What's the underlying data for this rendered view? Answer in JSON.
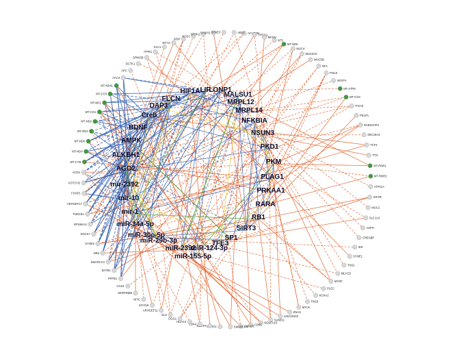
{
  "colors": {
    "orange": "#e2622a",
    "blue": "#2f5fb3",
    "yellow": "#e8d24a",
    "green": "#5aa64a",
    "node_grey": "#d8d8d8",
    "node_green": "#3f9a3a"
  },
  "hubs": [
    "HIF1A",
    "LIF",
    "LONP1",
    "MALSU1",
    "FLCN",
    "MRPL12",
    "DAP3",
    "MRPL14",
    "Creb",
    "NFKBIA",
    "BDNF",
    "NSUN3",
    "AMPK",
    "PKD1",
    "ALKBH1",
    "PKM",
    "AGO2",
    "PLAG1",
    "mir-2392",
    "PRKAA1",
    "mir-10",
    "RARA",
    "mir-1",
    "RB1",
    "miR-34a-5p",
    "SIRT3",
    "miR-30c-5p",
    "SP1",
    "TFE3",
    "miR-29b-3p",
    "miR-2392",
    "miR-124-3p",
    "miR-155-5p"
  ],
  "peripheral": [
    "ACVR2B",
    "TP53AL",
    "MFNN",
    "NT5",
    "MT-ND5",
    "MUC4",
    "MUC5AC",
    "MUC5B",
    "NF1",
    "POLE",
    "VEGFA",
    "MT-ATP8",
    "MT-CO2",
    "ITGA5",
    "PELP1",
    "RAB11FIP4",
    "SEC16A3",
    "TCF4",
    "TTN",
    "MT-RNR1",
    "MT-RNR2",
    "ATP11A",
    "IGF2R",
    "MUC2",
    "SLC1A2",
    "ASPH",
    "CRESBP",
    "IDS",
    "SYNE1",
    "TNS1",
    "MLYCD",
    "MYRF",
    "PLEC",
    "KCNA2",
    "TNS3",
    "MYLK",
    "ZNAH",
    "LINC00342",
    "SUMO2",
    "NDUFA10",
    "CDK5",
    "SMAD3",
    "SMARCA4",
    "SNHG1",
    "MECP2",
    "CDK4",
    "HDAC4",
    "OGG1",
    "GLS",
    "ARHGEF11",
    "MYO16",
    "NFIC",
    "SERPINB6",
    "CGS1",
    "FPP5C",
    "BATB1",
    "SMARCA4",
    "NR6",
    "SYNE2",
    "DOCK7",
    "RPS6KA2",
    "TNRC6A",
    "ARHGEF17",
    "FOXP1",
    "KOTCH2",
    "ACD1",
    "MT-CYB",
    "MT-ND4",
    "MT-ND6",
    "MT-ND3",
    "MT-ND2",
    "MT-CO1",
    "MT-ND1",
    "MT-CO3",
    "MT-ND4L",
    "AAC3",
    "APC",
    "DCTK1",
    "GRIN2B",
    "ITPR1",
    "KLC1",
    "KIF1A",
    "MSP",
    "NOS1",
    "NTRK2",
    "SYNPO",
    "SYNE3",
    "ABL2"
  ]
}
